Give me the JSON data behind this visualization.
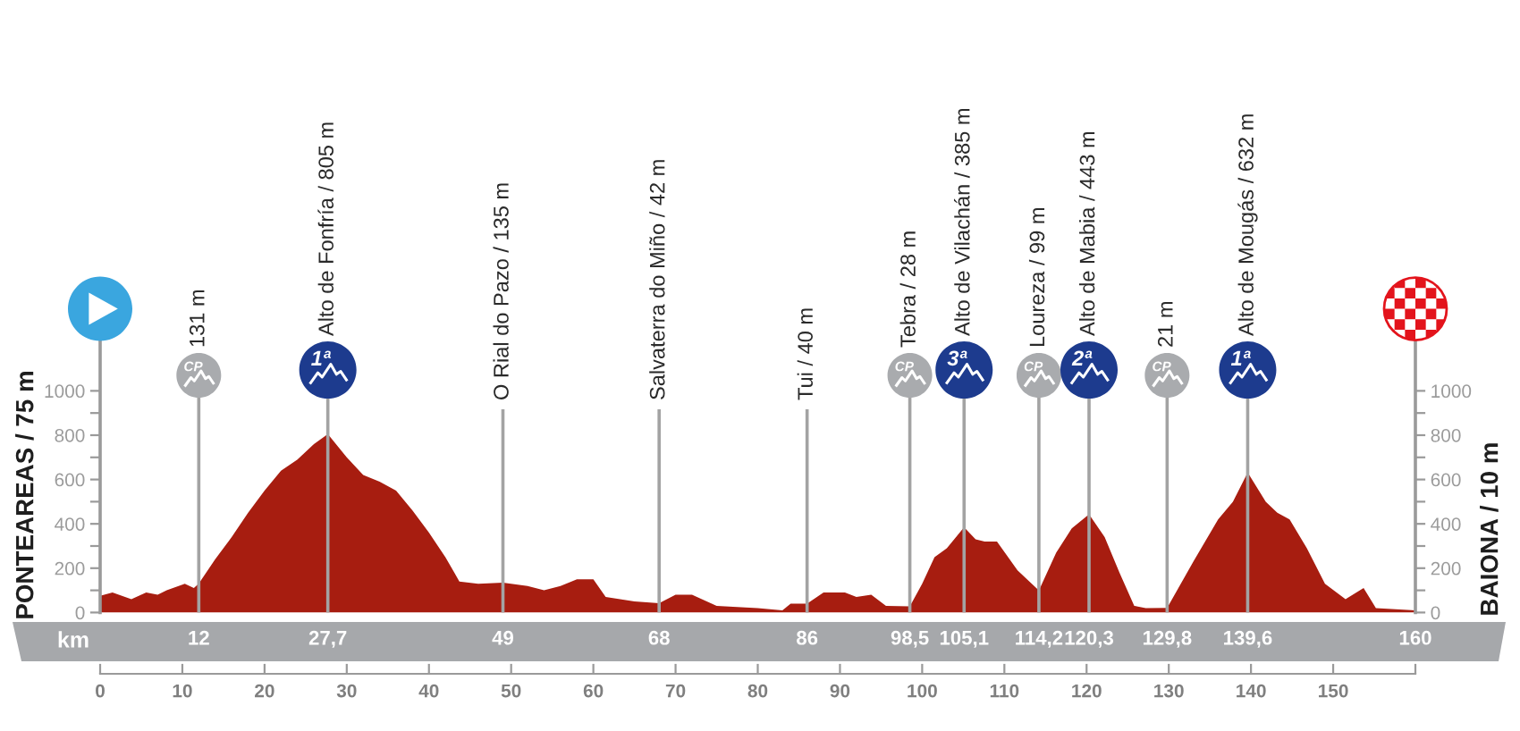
{
  "chart_data": {
    "type": "area",
    "x": [
      0,
      1.5,
      3.8,
      5.6,
      7,
      8.1,
      10.3,
      11.4,
      12,
      14,
      16,
      18,
      20,
      22,
      24,
      26,
      27.7,
      30,
      32,
      34,
      36,
      38,
      40,
      42,
      43.7,
      46,
      49,
      52,
      54,
      56,
      58,
      60,
      61.5,
      65,
      68,
      70,
      72,
      75,
      80,
      83,
      84,
      86,
      88,
      90.6,
      92,
      93.8,
      95.6,
      98.5,
      100,
      101.5,
      103,
      105.1,
      106.5,
      107.6,
      109.1,
      111.6,
      114.2,
      116.3,
      118.2,
      120.3,
      122.2,
      124,
      125.8,
      127.2,
      129.8,
      133,
      136,
      137.8,
      139.6,
      141.8,
      143.2,
      144.7,
      146.8,
      149,
      151.5,
      153.7,
      155.2,
      160
    ],
    "series": [
      {
        "color": "#a71d10",
        "values": [
          75,
          90,
          60,
          90,
          80,
          100,
          130,
          110,
          131,
          240,
          340,
          450,
          550,
          640,
          690,
          760,
          805,
          700,
          620,
          590,
          550,
          460,
          360,
          250,
          140,
          130,
          135,
          120,
          100,
          120,
          150,
          150,
          70,
          50,
          42,
          80,
          80,
          30,
          20,
          10,
          40,
          40,
          90,
          90,
          70,
          80,
          30,
          28,
          130,
          250,
          290,
          385,
          330,
          320,
          320,
          190,
          99,
          270,
          380,
          443,
          340,
          180,
          30,
          20,
          21,
          230,
          420,
          500,
          632,
          500,
          450,
          420,
          290,
          130,
          60,
          110,
          20,
          10
        ]
      }
    ],
    "xlim": [
      0,
      160
    ],
    "xticks": [
      0,
      10,
      20,
      30,
      40,
      50,
      60,
      70,
      80,
      90,
      100,
      110,
      120,
      130,
      140,
      150,
      {
        "value": 160,
        "label": null
      }
    ],
    "ylim": [
      0,
      1370
    ],
    "yticks": [
      0,
      {
        "value": 100,
        "label": null
      },
      200,
      {
        "value": 300,
        "label": null
      },
      400,
      {
        "value": 500,
        "label": null
      },
      600,
      {
        "value": 700,
        "label": null
      },
      800,
      {
        "value": 900,
        "label": null
      },
      1000
    ],
    "y2lim": [
      0,
      1370
    ],
    "y2ticks": [
      0,
      {
        "value": 100,
        "label": null
      },
      200,
      {
        "value": 300,
        "label": null
      },
      400,
      {
        "value": 500,
        "label": null
      },
      600,
      {
        "value": 700,
        "label": null
      },
      800,
      {
        "value": 900,
        "label": null
      },
      1000
    ],
    "ylabel": "PONTEAREAS / 75 m",
    "y2label": "BAIONA / 10 m",
    "x2lim": [
      0,
      160
    ],
    "x2label": "km",
    "x2ticks": [
      {
        "value": 12,
        "label": "12"
      },
      {
        "value": 27.7,
        "label": "27,7"
      },
      {
        "value": 49,
        "label": "49"
      },
      {
        "value": 68,
        "label": "68"
      },
      {
        "value": 86,
        "label": "86"
      },
      {
        "value": 98.5,
        "label": "98,5"
      },
      {
        "value": 105.1,
        "label": "105,1"
      },
      {
        "value": 114.2,
        "label": "114,2"
      },
      {
        "value": 120.3,
        "label": "120,3"
      },
      {
        "value": 129.8,
        "label": "129,8"
      },
      {
        "value": 139.6,
        "label": "139,6"
      },
      {
        "value": 160,
        "label": "160"
      }
    ],
    "ref_lines": [
      {
        "axis": "x",
        "value": 12,
        "label": "131 m",
        "color": "#a3a3a3"
      },
      {
        "axis": "x",
        "value": 27.7,
        "label": "Alto de Fonfría / 805 m",
        "color": "#a3a3a3"
      },
      {
        "axis": "x",
        "value": 98.5,
        "label": "Tebra / 28 m",
        "color": "#a3a3a3"
      },
      {
        "axis": "x",
        "value": 105.1,
        "label": "Alto de Vilachán / 385 m",
        "color": "#a3a3a3"
      },
      {
        "axis": "x",
        "value": 114.2,
        "label": "Loureza / 99 m",
        "color": "#a3a3a3"
      },
      {
        "axis": "x",
        "value": 120.3,
        "label": "Alto de Mabia / 443 m",
        "color": "#a3a3a3"
      },
      {
        "axis": "x",
        "value": 129.8,
        "label": "21 m",
        "color": "#a3a3a3"
      },
      {
        "axis": "x",
        "value": 139.6,
        "label": "Alto de Mougás / 632 m",
        "color": "#a3a3a3"
      },
      {
        "axis": "x",
        "value": 49,
        "label": "O Rial do Pazo / 135 m",
        "color": "#a3a3a3"
      },
      {
        "axis": "x",
        "value": 68,
        "label": "Salvaterra do Miño / 42 m",
        "color": "#a3a3a3"
      },
      {
        "axis": "x",
        "value": 86,
        "label": "Tui / 40 m",
        "color": "#a3a3a3"
      }
    ],
    "annotations": [
      "CP",
      "1ª",
      "CP",
      "3ª",
      "CP",
      "2ª",
      "CP",
      "1ª"
    ]
  }
}
